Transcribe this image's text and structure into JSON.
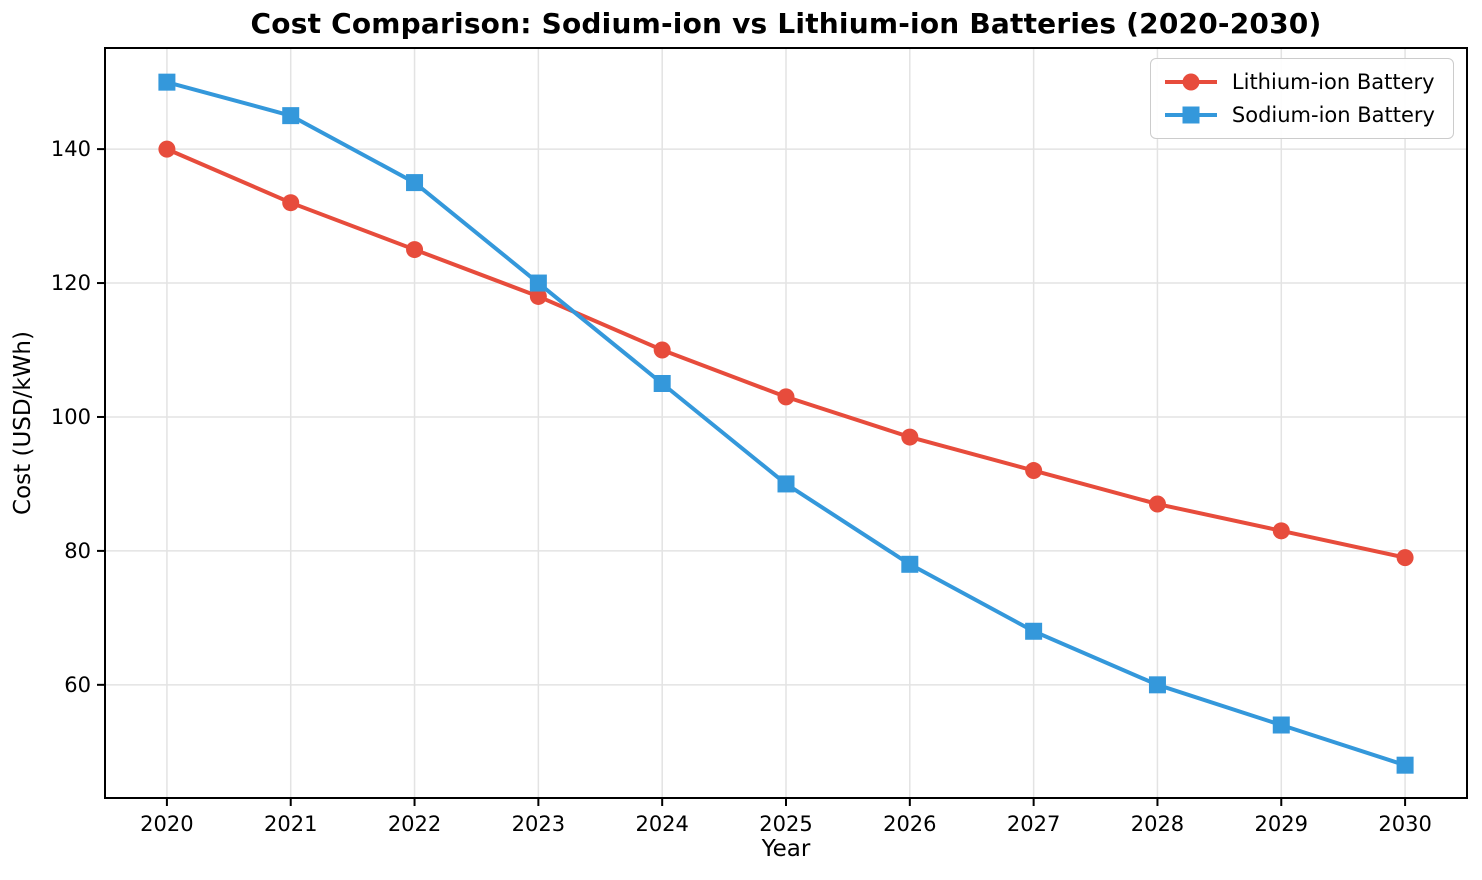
{
  "chart_data": {
    "type": "line",
    "title": "Cost Comparison: Sodium-ion vs Lithium-ion Batteries (2020-2030)",
    "xlabel": "Year",
    "ylabel": "Cost (USD/kWh)",
    "x": [
      2020,
      2021,
      2022,
      2023,
      2024,
      2025,
      2026,
      2027,
      2028,
      2029,
      2030
    ],
    "series": [
      {
        "name": "Lithium-ion Battery",
        "values": [
          140,
          132,
          125,
          118,
          110,
          103,
          97,
          92,
          87,
          83,
          79
        ],
        "color": "#e74c3c",
        "marker": "circle"
      },
      {
        "name": "Sodium-ion Battery",
        "values": [
          150,
          145,
          135,
          120,
          105,
          90,
          78,
          68,
          60,
          54,
          48
        ],
        "color": "#3498db",
        "marker": "square"
      }
    ],
    "xlim": [
      2019.5,
      2030.5
    ],
    "ylim": [
      43.1,
      155.1
    ],
    "xticks": [
      2020,
      2021,
      2022,
      2023,
      2024,
      2025,
      2026,
      2027,
      2028,
      2029,
      2030
    ],
    "yticks": [
      60,
      80,
      100,
      120,
      140
    ],
    "grid": true,
    "legend_position": "top-right",
    "grid_color": "#e3e3e3",
    "spine_color": "#000000",
    "background_color": "#ffffff"
  }
}
